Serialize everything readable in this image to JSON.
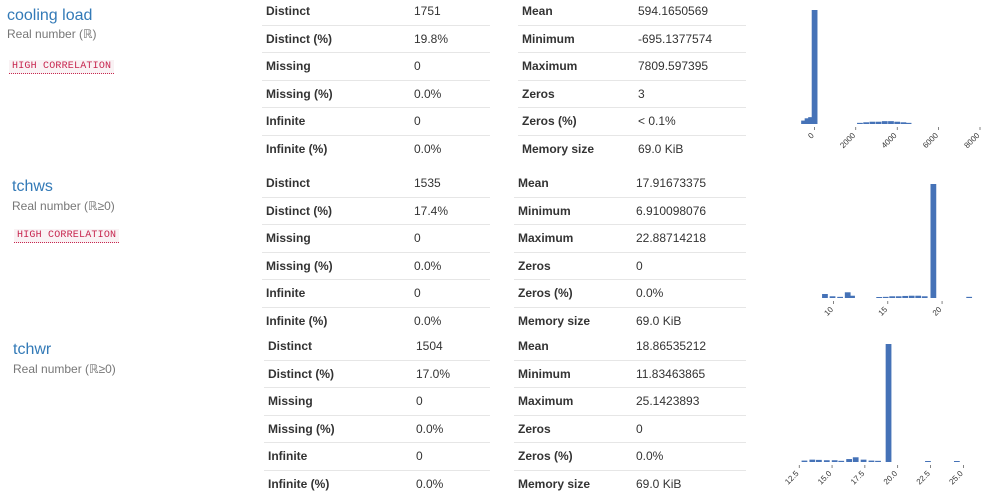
{
  "variables": [
    {
      "name": "cooling load",
      "type": "Real number (ℝ)",
      "badge": "HIGH CORRELATION",
      "stats_left": [
        {
          "k": "Distinct",
          "v": "1751"
        },
        {
          "k": "Distinct (%)",
          "v": "19.8%"
        },
        {
          "k": "Missing",
          "v": "0"
        },
        {
          "k": "Missing (%)",
          "v": "0.0%"
        },
        {
          "k": "Infinite",
          "v": "0"
        },
        {
          "k": "Infinite (%)",
          "v": "0.0%"
        }
      ],
      "stats_right": [
        {
          "k": "Mean",
          "v": "594.1650569"
        },
        {
          "k": "Minimum",
          "v": "-695.1377574"
        },
        {
          "k": "Maximum",
          "v": "7809.597395"
        },
        {
          "k": "Zeros",
          "v": "3"
        },
        {
          "k": "Zeros (%)",
          "v": "< 0.1%"
        },
        {
          "k": "Memory size",
          "v": "69.0 KiB"
        }
      ]
    },
    {
      "name": "tchws",
      "type": "Real number (ℝ≥0)",
      "badge": "HIGH CORRELATION",
      "stats_left": [
        {
          "k": "Distinct",
          "v": "1535"
        },
        {
          "k": "Distinct (%)",
          "v": "17.4%"
        },
        {
          "k": "Missing",
          "v": "0"
        },
        {
          "k": "Missing (%)",
          "v": "0.0%"
        },
        {
          "k": "Infinite",
          "v": "0"
        },
        {
          "k": "Infinite (%)",
          "v": "0.0%"
        }
      ],
      "stats_right": [
        {
          "k": "Mean",
          "v": "17.91673375"
        },
        {
          "k": "Minimum",
          "v": "6.910098076"
        },
        {
          "k": "Maximum",
          "v": "22.88714218"
        },
        {
          "k": "Zeros",
          "v": "0"
        },
        {
          "k": "Zeros (%)",
          "v": "0.0%"
        },
        {
          "k": "Memory size",
          "v": "69.0 KiB"
        }
      ]
    },
    {
      "name": "tchwr",
      "type": "Real number (ℝ≥0)",
      "badge": "",
      "stats_left": [
        {
          "k": "Distinct",
          "v": "1504"
        },
        {
          "k": "Distinct (%)",
          "v": "17.0%"
        },
        {
          "k": "Missing",
          "v": "0"
        },
        {
          "k": "Missing (%)",
          "v": "0.0%"
        },
        {
          "k": "Infinite",
          "v": "0"
        },
        {
          "k": "Infinite (%)",
          "v": "0.0%"
        }
      ],
      "stats_right": [
        {
          "k": "Mean",
          "v": "18.86535212"
        },
        {
          "k": "Minimum",
          "v": "11.83463865"
        },
        {
          "k": "Maximum",
          "v": "25.1423893"
        },
        {
          "k": "Zeros",
          "v": "0"
        },
        {
          "k": "Zeros (%)",
          "v": "0.0%"
        },
        {
          "k": "Memory size",
          "v": "69.0 KiB"
        }
      ]
    }
  ],
  "chart_data": [
    {
      "type": "bar",
      "xlim": [
        -695,
        8000
      ],
      "ticks": [
        0,
        2000,
        4000,
        6000,
        8000
      ],
      "tick_labels": [
        "0",
        "2000",
        "4000",
        "6000",
        "8000"
      ],
      "bins": [
        {
          "x": -500,
          "h": 0.03
        },
        {
          "x": -330,
          "h": 0.05
        },
        {
          "x": -160,
          "h": 0.06
        },
        {
          "x": 10,
          "h": 1.0
        },
        {
          "x": 2200,
          "h": 0.01
        },
        {
          "x": 2500,
          "h": 0.015
        },
        {
          "x": 2800,
          "h": 0.02
        },
        {
          "x": 3100,
          "h": 0.02
        },
        {
          "x": 3400,
          "h": 0.025
        },
        {
          "x": 3700,
          "h": 0.025
        },
        {
          "x": 4000,
          "h": 0.02
        },
        {
          "x": 4300,
          "h": 0.015
        },
        {
          "x": 4550,
          "h": 0.01
        }
      ],
      "color": "#4572b7"
    },
    {
      "type": "bar",
      "xlim": [
        6.9,
        23.5
      ],
      "ticks": [
        10,
        15,
        20
      ],
      "tick_labels": [
        "10",
        "15",
        "20"
      ],
      "bins": [
        {
          "x": 9.2,
          "h": 0.035
        },
        {
          "x": 9.9,
          "h": 0.015
        },
        {
          "x": 10.6,
          "h": 0.01
        },
        {
          "x": 11.3,
          "h": 0.05
        },
        {
          "x": 11.7,
          "h": 0.02
        },
        {
          "x": 14.2,
          "h": 0.008
        },
        {
          "x": 14.8,
          "h": 0.01
        },
        {
          "x": 15.4,
          "h": 0.015
        },
        {
          "x": 16.0,
          "h": 0.015
        },
        {
          "x": 16.6,
          "h": 0.018
        },
        {
          "x": 17.2,
          "h": 0.02
        },
        {
          "x": 17.8,
          "h": 0.02
        },
        {
          "x": 18.4,
          "h": 0.015
        },
        {
          "x": 19.2,
          "h": 1.0
        },
        {
          "x": 22.5,
          "h": 0.01
        }
      ],
      "color": "#4572b7"
    },
    {
      "type": "bar",
      "xlim": [
        11.8,
        25.5
      ],
      "ticks": [
        12.5,
        15.0,
        17.5,
        20.0,
        22.5,
        25.0
      ],
      "tick_labels": [
        "12.5",
        "15.0",
        "17.5",
        "20.0",
        "22.5",
        "25.0"
      ],
      "bins": [
        {
          "x": 12.9,
          "h": 0.012
        },
        {
          "x": 13.5,
          "h": 0.02
        },
        {
          "x": 14.0,
          "h": 0.018
        },
        {
          "x": 14.6,
          "h": 0.015
        },
        {
          "x": 15.2,
          "h": 0.015
        },
        {
          "x": 15.7,
          "h": 0.01
        },
        {
          "x": 16.3,
          "h": 0.025
        },
        {
          "x": 16.8,
          "h": 0.04
        },
        {
          "x": 17.4,
          "h": 0.02
        },
        {
          "x": 18.0,
          "h": 0.012
        },
        {
          "x": 18.5,
          "h": 0.01
        },
        {
          "x": 19.3,
          "h": 1.0
        },
        {
          "x": 22.3,
          "h": 0.008
        },
        {
          "x": 24.5,
          "h": 0.004
        }
      ],
      "color": "#4572b7"
    }
  ]
}
